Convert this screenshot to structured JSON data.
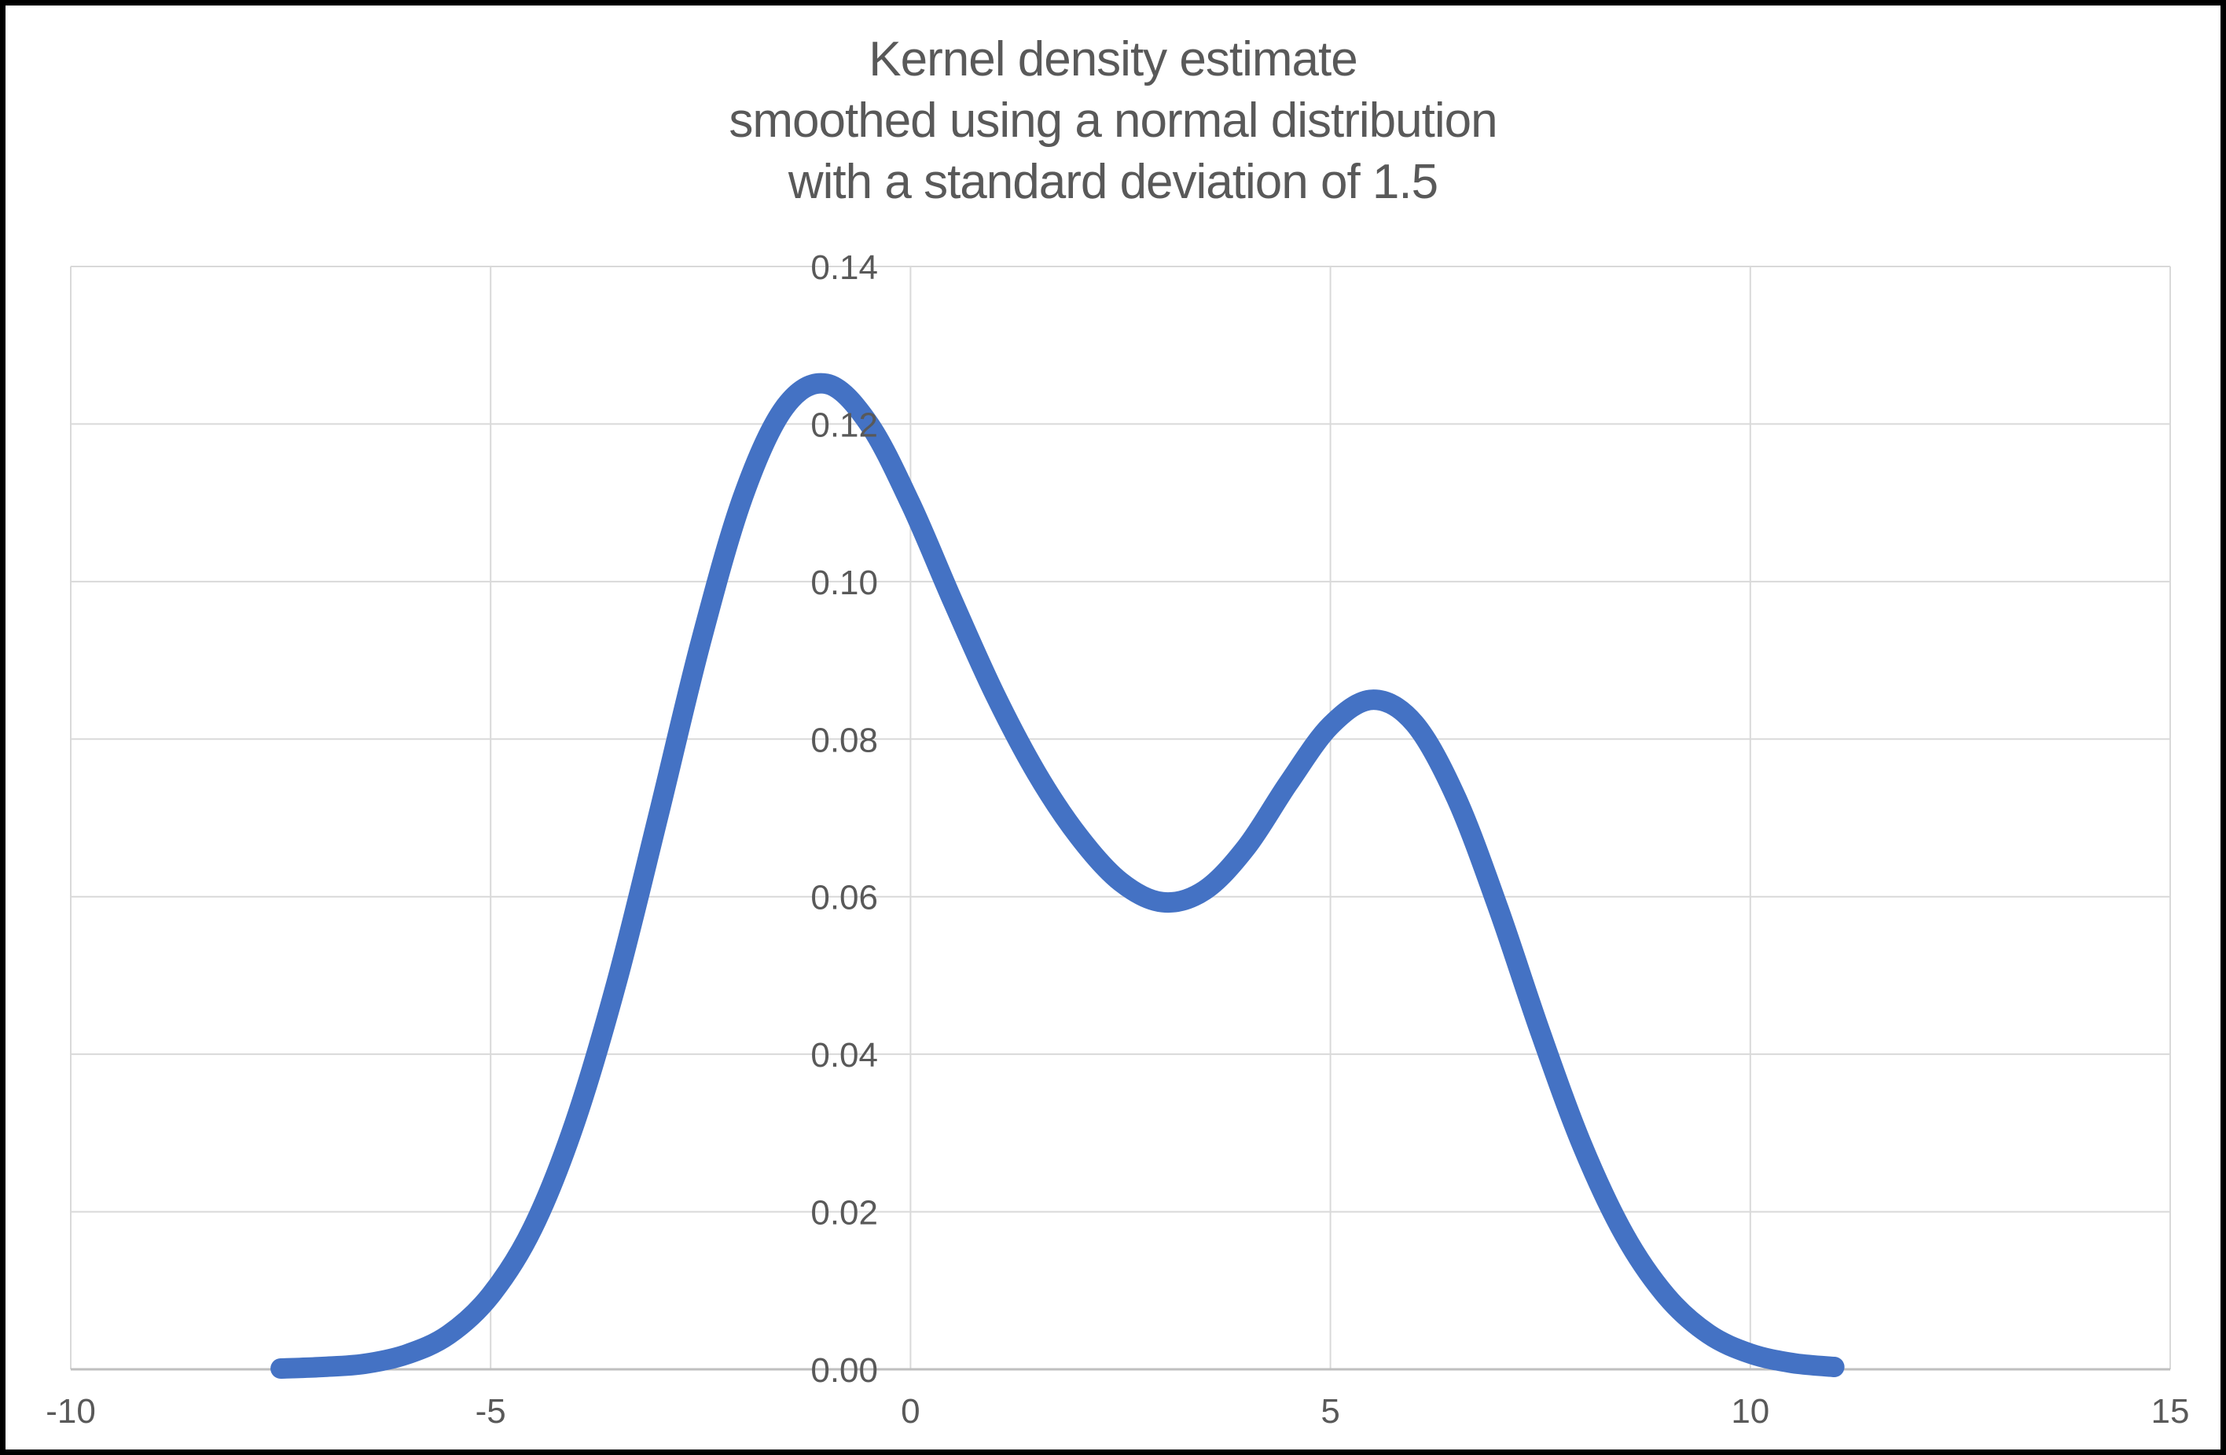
{
  "title": {
    "line1": "Kernel density estimate",
    "line2": "smoothed using a normal distribution",
    "line3": "with a standard deviation of 1.5"
  },
  "colors": {
    "curve": "#4472C4",
    "gridline": "#D9D9D9",
    "axis_line": "#BFBFBF",
    "tick_label": "#595959",
    "title_text": "#595959",
    "background": "#FFFFFF",
    "frame_border": "#000000"
  },
  "chart_data": {
    "type": "line",
    "title": "Kernel density estimate\nsmoothed using a normal distribution\nwith a standard deviation of 1.5",
    "xlabel": "",
    "ylabel": "",
    "xlim": [
      -10,
      15
    ],
    "ylim": [
      0,
      0.14
    ],
    "x_ticks": [
      -10,
      -5,
      0,
      5,
      10,
      15
    ],
    "x_tick_labels": [
      "-10",
      "-5",
      "0",
      "5",
      "10",
      "15"
    ],
    "y_ticks": [
      0,
      0.02,
      0.04,
      0.06,
      0.08,
      0.1,
      0.12,
      0.14
    ],
    "y_tick_labels": [
      "0.00",
      "0.02",
      "0.04",
      "0.06",
      "0.08",
      "0.10",
      "0.12",
      "0.14"
    ],
    "grid": true,
    "legend": false,
    "series": [
      {
        "name": "Kernel density estimate",
        "x": [
          -7.5,
          -7,
          -6.5,
          -6,
          -5.5,
          -5,
          -4.5,
          -4,
          -3.5,
          -3,
          -2.5,
          -2,
          -1.5,
          -1,
          -0.5,
          0,
          0.5,
          1,
          1.5,
          2,
          2.5,
          3,
          3.5,
          4,
          4.5,
          5,
          5.5,
          6,
          6.5,
          7,
          7.5,
          8,
          8.5,
          9,
          9.5,
          10,
          10.5,
          11
        ],
        "y": [
          0.0001,
          0.0003,
          0.0007,
          0.0019,
          0.0044,
          0.0094,
          0.0179,
          0.0312,
          0.0491,
          0.0704,
          0.0922,
          0.1106,
          0.1221,
          0.1251,
          0.1201,
          0.1099,
          0.0976,
          0.0858,
          0.0757,
          0.0677,
          0.0619,
          0.0593,
          0.0608,
          0.0663,
          0.0744,
          0.0817,
          0.085,
          0.082,
          0.0725,
          0.0585,
          0.0428,
          0.0284,
          0.0171,
          0.0093,
          0.0045,
          0.002,
          0.0008,
          0.0003
        ]
      }
    ]
  }
}
